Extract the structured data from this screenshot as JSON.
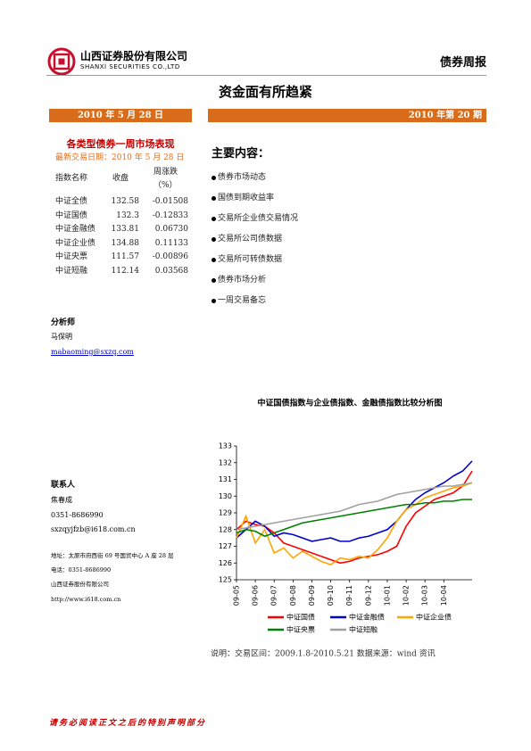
{
  "header": {
    "company": "山西证券股份有限公司",
    "company_en": "SHANXI SECURITIES CO.,LTD",
    "report_type": "债券周报"
  },
  "title": "资金面有所趋紧",
  "date": "2010 年 5 月 28 日",
  "issue": "2010 年第 20 期",
  "market_table": {
    "title": "各类型债券一周市场表现",
    "subtitle": "最新交易日期：2010 年 5 月 28 日",
    "header": [
      "指数名称",
      "收盘",
      "周涨跌",
      "（%）"
    ],
    "rows": [
      [
        "中证全债",
        "132.58",
        "-0.01508"
      ],
      [
        "中证国债",
        "132.3",
        "-0.12833"
      ],
      [
        "中证金融债",
        "133.81",
        "0.06730"
      ],
      [
        "中证企业债",
        "134.88",
        "0.11133"
      ],
      [
        "中证央票",
        "111.57",
        "-0.00896"
      ],
      [
        "中证短融",
        "112.14",
        "0.03568"
      ]
    ]
  },
  "contents": {
    "title": "主要内容：",
    "items": [
      "债券市场动态",
      "国债到期收益率",
      "交易所企业债交易情况",
      "交易所公司债数据",
      "交易所可转债数据",
      "债券市场分析",
      "一周交易备忘"
    ]
  },
  "analyst": {
    "title": "分析师",
    "name": "马保明",
    "email": "mabaoming@sxzq.com"
  },
  "contact": {
    "title": "联系人",
    "name": "焦春成",
    "phone": "0351-8686990",
    "email": "sxzqyjfzb@i618.com.cn",
    "address": "地址：太原市府西街 69 号国贸中心 A 座 28 层",
    "tel": "电话：0351-8686990",
    "company": "山西证券股份有限公司",
    "url": "http://www.i618.com.cn"
  },
  "footer": "请务必阅读正文之后的特别声明部分",
  "chart_data": {
    "type": "line",
    "title": "中证国债指数与企业债指数、金融债指数比较分析图",
    "footnote": "说明：交易区间：2009.1.8-2010.5.21   数据来源：wind 资讯",
    "categories": [
      "09-05",
      null,
      "09-06",
      null,
      "09-07",
      null,
      "09-08",
      null,
      "09-09",
      null,
      "09-10",
      null,
      "09-11",
      null,
      "09-12",
      null,
      "10-01",
      null,
      "10-02",
      null,
      "10-03",
      null,
      "10-04",
      null,
      null,
      null
    ],
    "ylim": [
      125,
      133
    ],
    "yticks": [
      125,
      126,
      127,
      128,
      129,
      130,
      131,
      132,
      133
    ],
    "grid": false,
    "series": [
      {
        "name": "中证国债",
        "color": "#ff0000",
        "values": [
          128,
          128.5,
          128.3,
          128.2,
          127.8,
          127.2,
          127,
          126.8,
          126.6,
          126.4,
          126.2,
          126,
          126.1,
          126.3,
          126.4,
          126.5,
          126.7,
          127,
          128.2,
          129,
          129.4,
          129.8,
          130,
          130.2,
          130.6,
          131.5
        ]
      },
      {
        "name": "中证金融债",
        "color": "#0000cc",
        "values": [
          127.5,
          128,
          128.5,
          128.2,
          127.6,
          127.8,
          127.7,
          127.5,
          127.3,
          127.4,
          127.5,
          127.3,
          127.3,
          127.5,
          127.6,
          127.8,
          128,
          128.5,
          129.2,
          129.8,
          130.2,
          130.5,
          130.8,
          131.2,
          131.5,
          132.1
        ]
      },
      {
        "name": "中证企业债",
        "color": "#ffa500",
        "values": [
          127.5,
          128.8,
          127.2,
          128,
          126.6,
          126.9,
          126.3,
          126.7,
          126.4,
          126.1,
          125.9,
          126.3,
          126.2,
          126.4,
          126.3,
          126.8,
          127.5,
          128.5,
          129.2,
          129.5,
          129.9,
          130.1,
          130.3,
          130.5,
          130.6,
          130.8
        ]
      },
      {
        "name": "中证央票",
        "color": "#008000",
        "values": [
          127.8,
          128,
          127.9,
          127.6,
          127.8,
          128,
          128.2,
          128.4,
          128.5,
          128.6,
          128.7,
          128.8,
          128.9,
          129,
          129.1,
          129.2,
          129.3,
          129.4,
          129.5,
          129.5,
          129.6,
          129.6,
          129.7,
          129.7,
          129.8,
          129.8
        ]
      },
      {
        "name": "中证短融",
        "color": "#a0a0a0",
        "values": [
          128,
          128.1,
          128.2,
          128.3,
          128.4,
          128.5,
          128.6,
          128.7,
          128.8,
          128.9,
          129,
          129.1,
          129.3,
          129.5,
          129.6,
          129.7,
          129.9,
          130.1,
          130.2,
          130.3,
          130.4,
          130.5,
          130.6,
          130.6,
          130.7,
          130.8
        ]
      }
    ]
  }
}
